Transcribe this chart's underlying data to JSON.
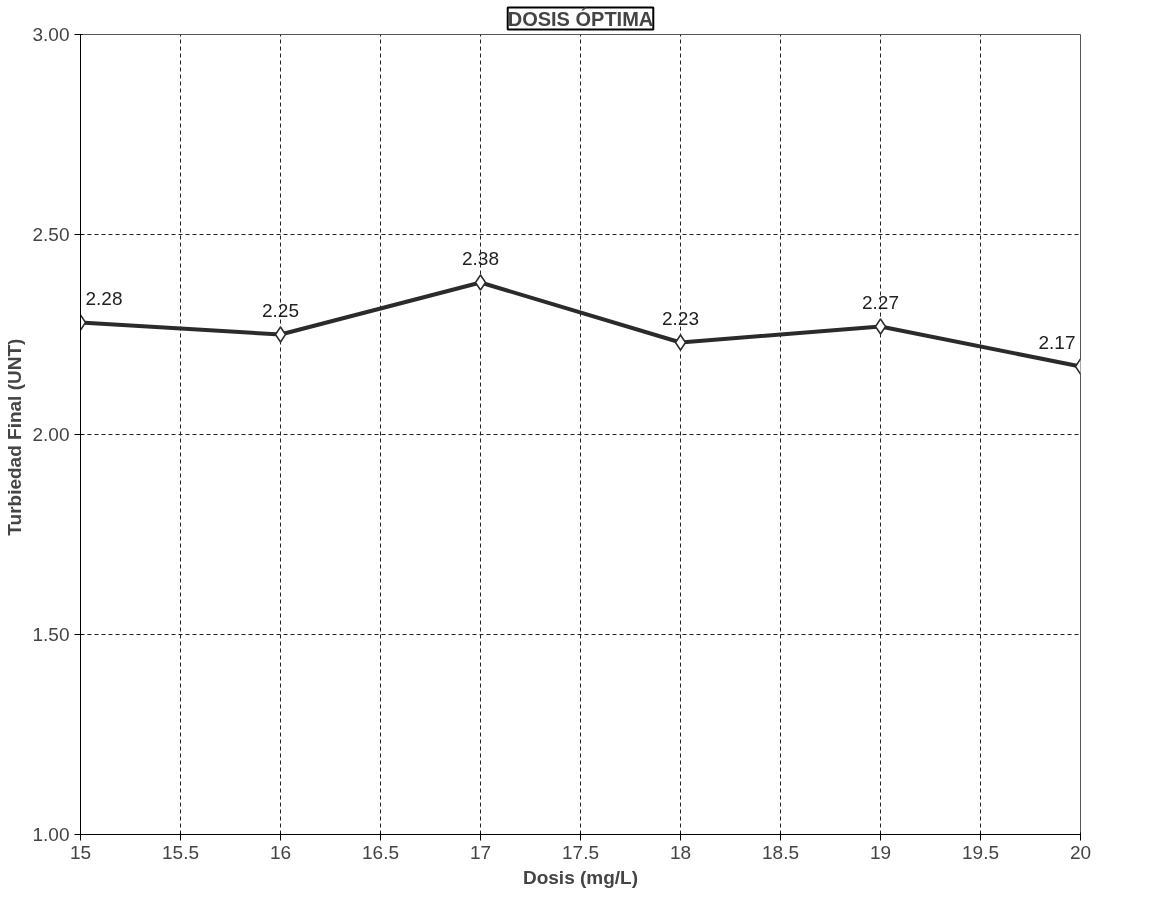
{
  "chart_data": {
    "type": "line",
    "title": "DOSIS ÓPTIMA",
    "xlabel": "Dosis (mg/L)",
    "ylabel": "Turbiedad Final  (UNT)",
    "x": [
      15,
      16,
      17,
      18,
      19,
      20
    ],
    "series": [
      {
        "color": "#2b2b2b",
        "values": [
          2.28,
          2.25,
          2.38,
          2.23,
          2.27,
          2.17
        ]
      }
    ],
    "xlim": [
      15,
      20
    ],
    "xticks": [
      15,
      15.5,
      16,
      16.5,
      17,
      17.5,
      18,
      18.5,
      19,
      19.5,
      20
    ],
    "ylim": [
      1,
      3
    ],
    "yticks": [
      {
        "value": 1,
        "label": "1.00"
      },
      {
        "value": 1.5,
        "label": "1.50"
      },
      {
        "value": 2,
        "label": "2.00"
      },
      {
        "value": 2.5,
        "label": "2.50"
      },
      {
        "value": 3,
        "label": "3.00"
      }
    ],
    "grid": true,
    "marker": "diamond",
    "line_style": "solid",
    "data_labels": true
  }
}
